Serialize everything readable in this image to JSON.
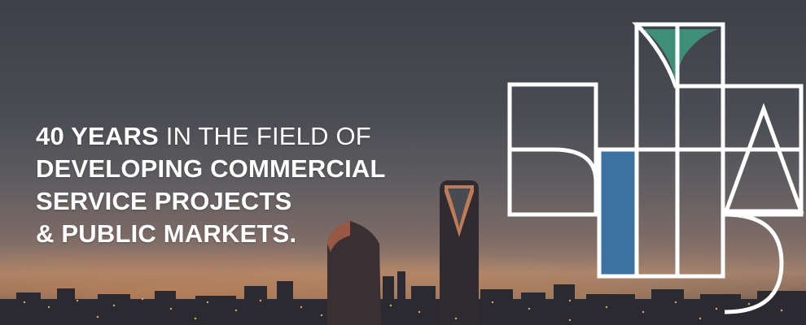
{
  "banner": {
    "headline": {
      "line1_bold": "40 YEARS",
      "line1_rest": " IN THE FIELD OF",
      "line2": "DEVELOPING COMMERCIAL",
      "line3": "SERVICE PROJECTS",
      "line4": "& PUBLIC MARKETS."
    }
  },
  "colors": {
    "logo_stroke": "#ffffff",
    "logo_green": "#3d8f78",
    "logo_blue": "#3b72a2",
    "sky_top": "#3d4048",
    "horizon_glow": "#e6965a"
  },
  "icons": {
    "logo": "geometric-logo-icon",
    "skyline": "city-skyline-image",
    "tower": "kingdom-tower-icon"
  }
}
